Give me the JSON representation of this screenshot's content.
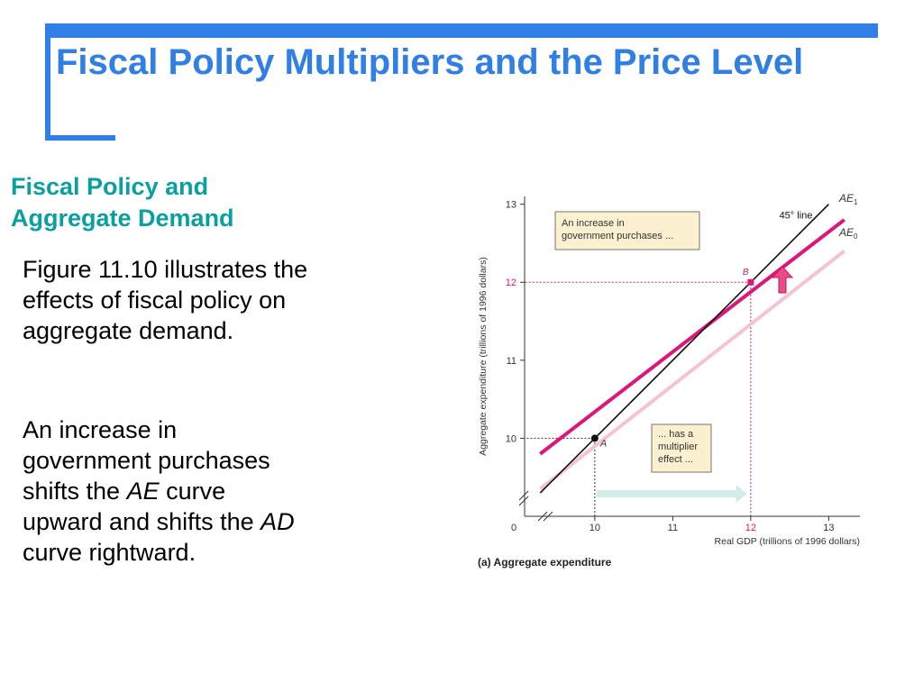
{
  "slide": {
    "title": "Fiscal Policy Multipliers and the Price Level",
    "subheading": "Fiscal Policy and Aggregate Demand",
    "paragraph1": "Figure 11.10 illustrates the effects of fiscal policy on aggregate demand.",
    "paragraph2": {
      "t1": "An increase in government purchases shifts the ",
      "i1": "AE",
      "t2": " curve upward and shifts the ",
      "i2": "AD",
      "t3": " curve rightward."
    },
    "accent_color": "#2f7fe6",
    "subheading_color": "#0aa0a0"
  },
  "chart_data": {
    "type": "line",
    "caption": "(a) Aggregate expenditure",
    "xlabel": "Real GDP (trillions of 1996 dollars)",
    "ylabel": "Aggregate expenditure (trillions of 1996 dollars)",
    "xlim": [
      9.1,
      13.4
    ],
    "ylim": [
      9.0,
      13.1
    ],
    "x_ticks": [
      10,
      11,
      12,
      13
    ],
    "y_ticks": [
      10,
      11,
      12,
      13
    ],
    "origin_label": "0",
    "series": [
      {
        "name": "45° line",
        "x": [
          9.3,
          13.0
        ],
        "y": [
          9.3,
          13.0
        ],
        "color": "#111111"
      },
      {
        "name": "AE1",
        "label_main": "AE",
        "label_sub": "1",
        "x": [
          9.3,
          13.2
        ],
        "y": [
          9.8,
          12.8
        ],
        "color": "#e0157a"
      },
      {
        "name": "AE0",
        "label_main": "AE",
        "label_sub": "0",
        "x": [
          9.3,
          13.2
        ],
        "y": [
          9.35,
          12.4
        ],
        "color": "#f6c3d2"
      }
    ],
    "points": [
      {
        "label": "A",
        "x": 10,
        "y": 10,
        "color": "#111111"
      },
      {
        "label": "B",
        "x": 12,
        "y": 12,
        "color": "#e0157a"
      }
    ],
    "annotations": {
      "box1": [
        "An increase in",
        "government purchases ..."
      ],
      "box2": [
        "... has a",
        "multiplier",
        "effect ..."
      ]
    },
    "arrow_right_from_to": [
      10.0,
      11.95
    ],
    "highlight_color": "#e0157a"
  }
}
